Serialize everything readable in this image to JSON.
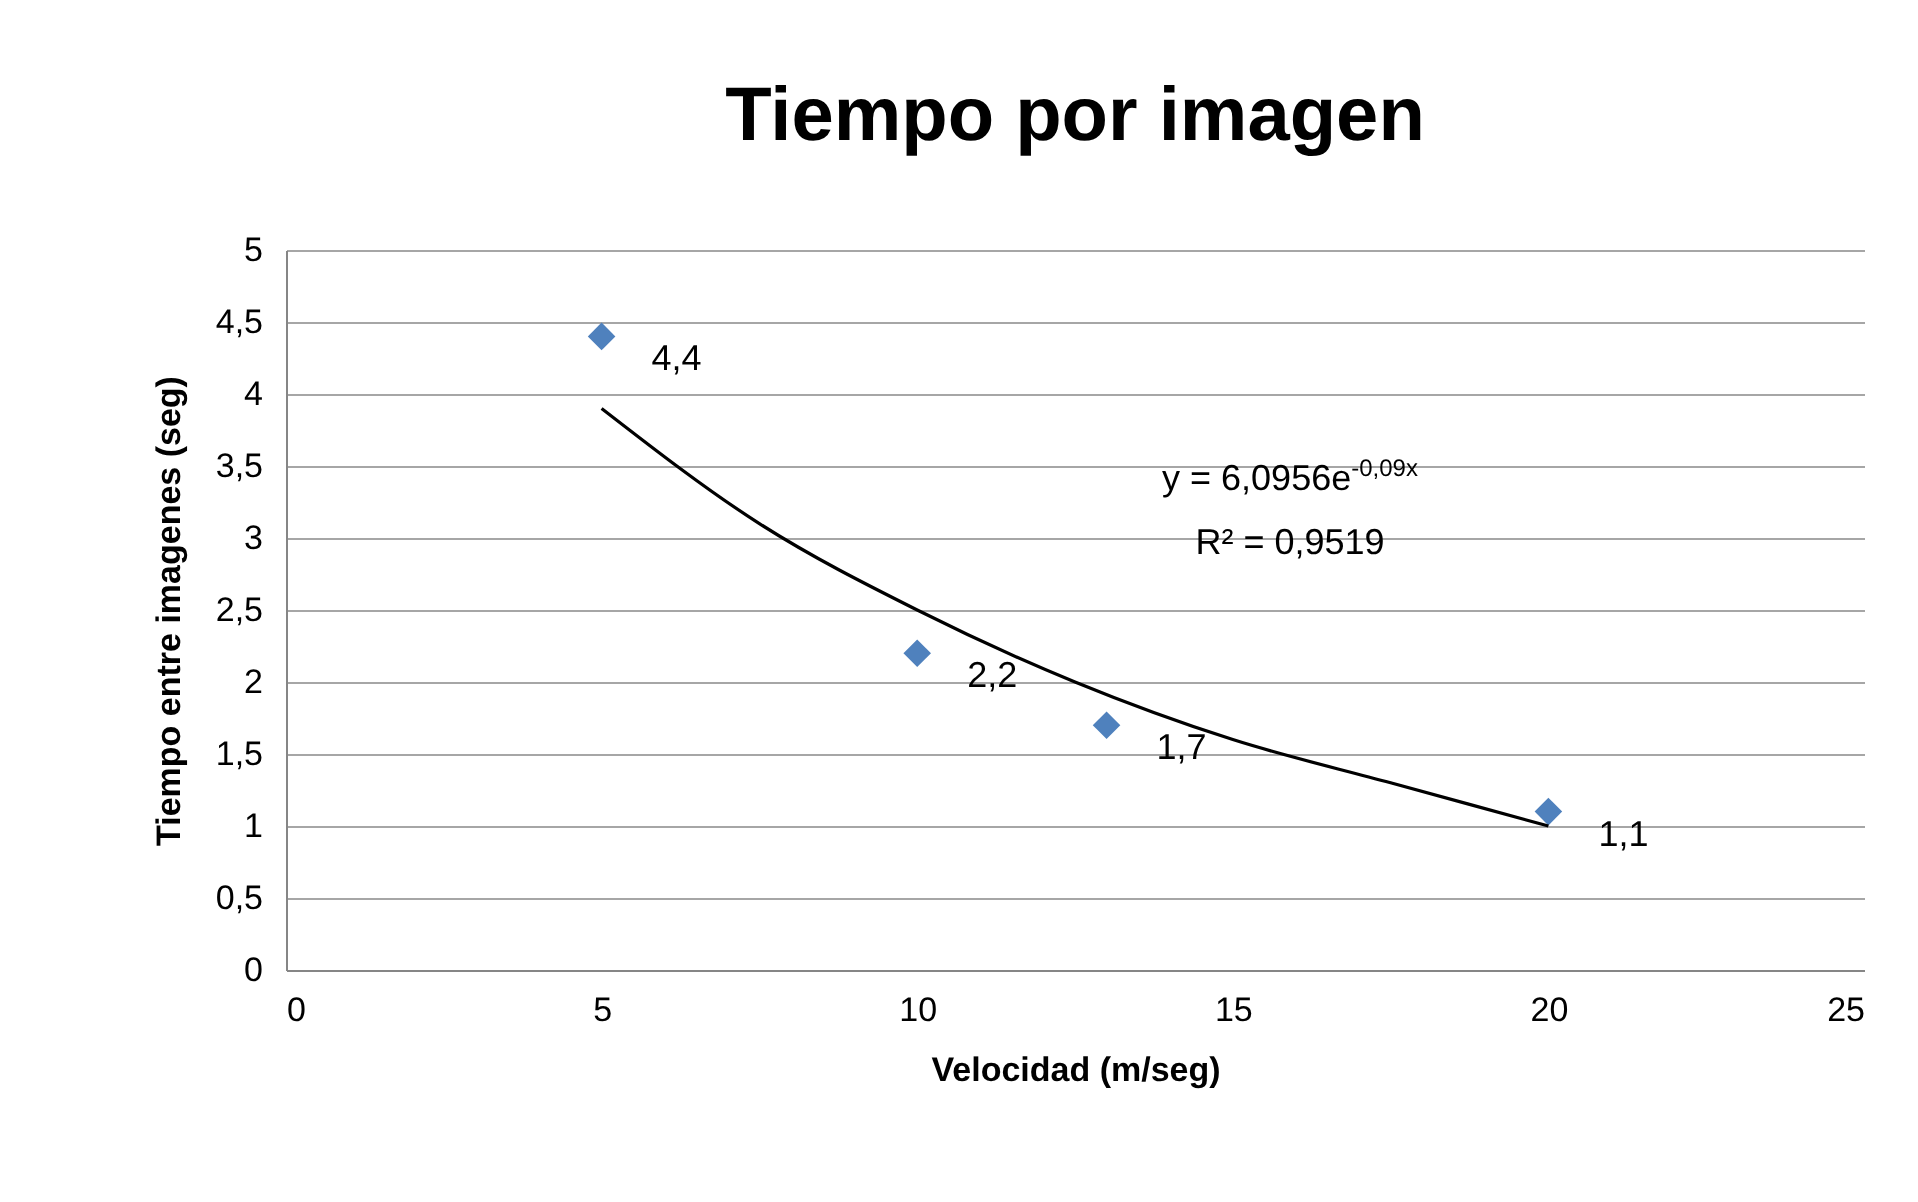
{
  "chart_data": {
    "type": "scatter",
    "title": "Tiempo por imagen",
    "xlabel": "Velocidad (m/seg)",
    "ylabel": "Tiempo entre imagenes  (seg)",
    "xlim": [
      0,
      25
    ],
    "xticks": [
      0,
      5,
      10,
      15,
      20,
      25
    ],
    "ylim": [
      0,
      5
    ],
    "yticks": [
      0,
      {
        "value": 0.5,
        "label": "0,5"
      },
      1,
      {
        "value": 1.5,
        "label": "1,5"
      },
      2,
      {
        "value": 2.5,
        "label": "2,5"
      },
      3,
      {
        "value": 3.5,
        "label": "3,5"
      },
      4,
      {
        "value": 4.5,
        "label": "4,5"
      },
      5
    ],
    "grid": "y",
    "marker": "diamond",
    "series": [
      {
        "type": "scatter",
        "color": "#4f81bd",
        "x": [
          5,
          10,
          13,
          20
        ],
        "values": [
          4.4,
          2.2,
          1.7,
          1.1
        ],
        "value_labels": [
          "4,4",
          "2,2",
          "1,7",
          "1,1"
        ]
      },
      {
        "type": "line",
        "marker": "none",
        "color": "#000000",
        "x": [
          5,
          7.5,
          10,
          12.5,
          15,
          17.5,
          20
        ],
        "values": [
          3.9,
          3.1,
          2.5,
          2.0,
          1.6,
          1.3,
          1.0
        ]
      }
    ],
    "annotations": [
      "y = 6,0956e$^{-0,09x}$",
      "R² = 0,9519"
    ]
  }
}
